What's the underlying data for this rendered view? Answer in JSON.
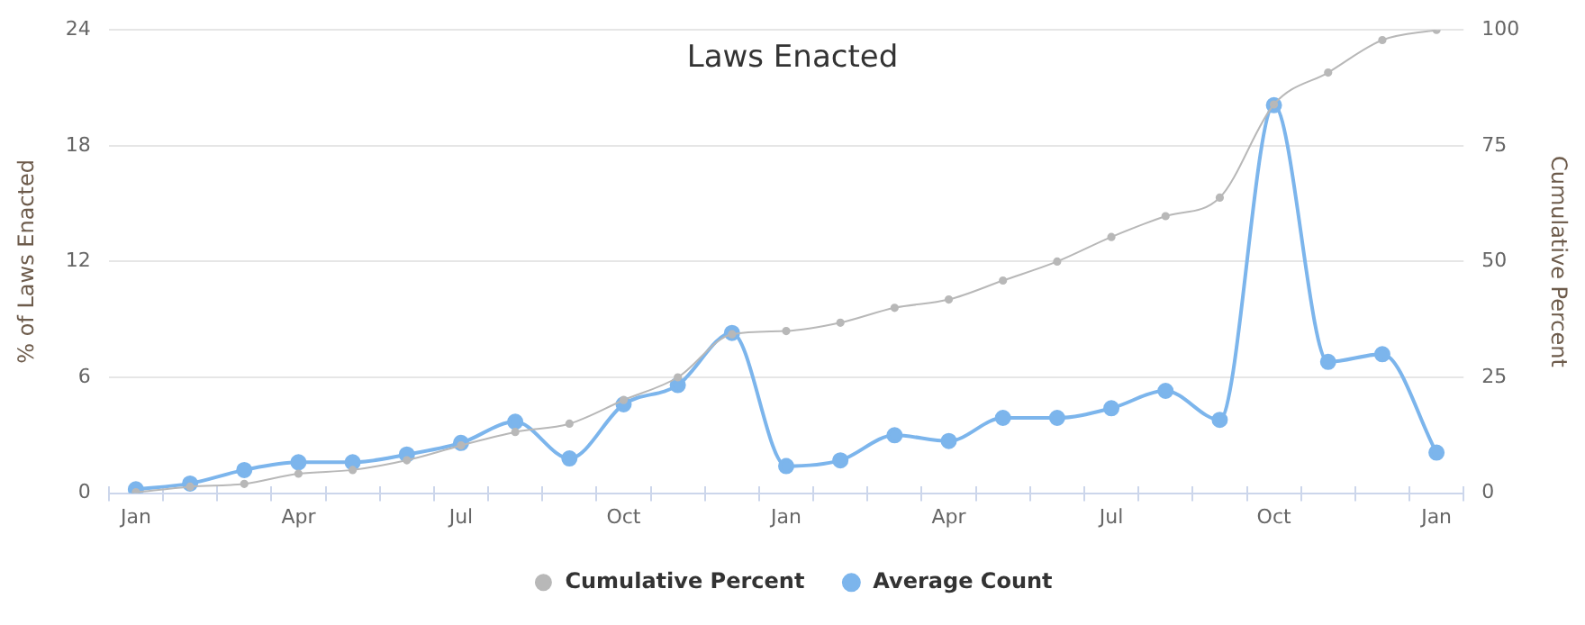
{
  "chart_data": {
    "type": "line",
    "title": "Laws Enacted",
    "ylabel": "% of Laws Enacted",
    "y2label": "Cumulative Percent",
    "categories": [
      "Jan",
      null,
      null,
      "Apr",
      null,
      null,
      "Jul",
      null,
      null,
      "Oct",
      null,
      null,
      "Jan",
      null,
      null,
      "Apr",
      null,
      null,
      "Jul",
      null,
      null,
      "Oct",
      null,
      null,
      "Jan"
    ],
    "series": [
      {
        "name": "Average Count",
        "color": "#7cb5ec",
        "marker": "circle",
        "values": [
          0.2,
          0.5,
          1.2,
          1.6,
          1.6,
          2.0,
          2.6,
          3.7,
          1.8,
          4.6,
          5.6,
          8.3,
          1.4,
          1.7,
          3.0,
          2.7,
          3.9,
          3.9,
          4.4,
          5.3,
          3.8,
          20.1,
          6.8,
          7.2,
          2.1
        ]
      },
      {
        "name": "Cumulative Percent",
        "color": "#b8b8b8",
        "axis": "y2",
        "marker": "circle",
        "values": [
          0.2,
          1.4,
          2.0,
          4.2,
          5.0,
          7.1,
          10.3,
          13.2,
          15.0,
          20.1,
          25,
          34.3,
          35,
          36.8,
          40,
          41.8,
          45.9,
          50,
          55.3,
          59.8,
          63.8,
          83.9,
          90.8,
          97.8,
          100
        ]
      }
    ],
    "ylim": [
      0,
      24
    ],
    "yticks": [
      0,
      6,
      12,
      18,
      24
    ],
    "y2lim": [
      0,
      100
    ],
    "y2ticks": [
      0,
      25,
      50,
      75,
      100
    ],
    "grid": "y",
    "legend": "bottom"
  }
}
